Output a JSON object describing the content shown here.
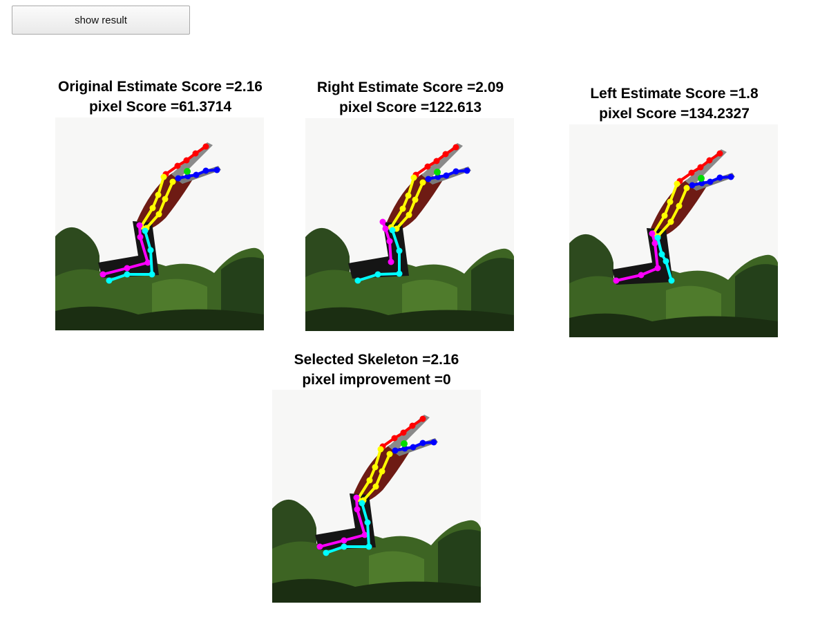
{
  "controls": {
    "show_result_label": "show result"
  },
  "panels": [
    {
      "id": "original",
      "title_line1": "Original Estimate Score =2.16",
      "title_line2": "pixel Score =61.3714"
    },
    {
      "id": "right",
      "title_line1": "Right Estimate Score =2.09",
      "title_line2": "pixel Score =122.613"
    },
    {
      "id": "left",
      "title_line1": "Left Estimate Score =1.8",
      "title_line2": "pixel Score =134.2327"
    },
    {
      "id": "selected",
      "title_line1": "Selected Skeleton =2.16",
      "title_line2": "pixel improvement =0"
    }
  ],
  "colors": {
    "background": "#ffffff",
    "limb_red": "#ff0000",
    "limb_blue": "#0000ff",
    "limb_green": "#00dd00",
    "limb_yellow": "#ffff00",
    "limb_magenta": "#ff00ff",
    "limb_cyan": "#00ffff"
  }
}
